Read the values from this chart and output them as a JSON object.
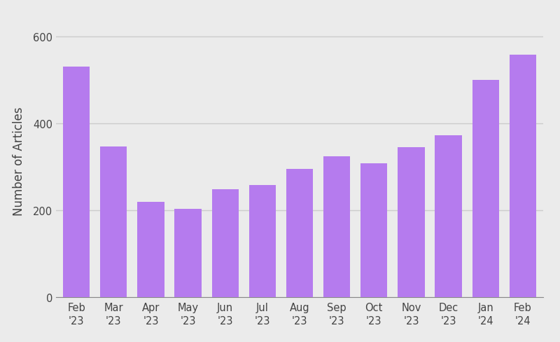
{
  "categories": [
    "Feb\n'23",
    "Mar\n'23",
    "Apr\n'23",
    "May\n'23",
    "Jun\n'23",
    "Jul\n'23",
    "Aug\n'23",
    "Sep\n'23",
    "Oct\n'23",
    "Nov\n'23",
    "Dec\n'23",
    "Jan\n'24",
    "Feb\n'24"
  ],
  "values": [
    530,
    347,
    220,
    203,
    248,
    258,
    295,
    325,
    308,
    345,
    373,
    500,
    558
  ],
  "bar_color": "#b57bee",
  "ylabel": "Number of Articles",
  "ylim": [
    0,
    630
  ],
  "yticks": [
    0,
    200,
    400,
    600
  ],
  "background_color": "#ebebeb",
  "grid_color": "#cccccc",
  "ylabel_fontsize": 12,
  "tick_fontsize": 10.5
}
